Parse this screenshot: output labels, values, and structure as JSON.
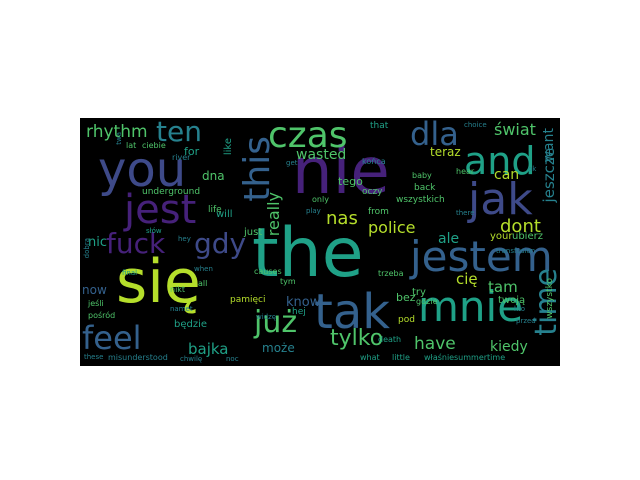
{
  "palette": {
    "background": "#000000",
    "purple": "#46217a",
    "indigo": "#3e4a89",
    "blue": "#34618d",
    "teal": "#26818e",
    "green": "#1fa187",
    "lime": "#4fc46a",
    "yellow": "#b5de2b"
  },
  "words": {
    "the": "the",
    "sie": "się",
    "nie": "nie",
    "you": "you",
    "mnie": "mnie",
    "tak": "tak",
    "jestem": "jestem",
    "jak": "jak",
    "jest": "jest",
    "czas": "czas",
    "and": "and",
    "dla": "dla",
    "this": "this",
    "time": "time",
    "feel": "feel",
    "fuck": "fuck",
    "gdy": "gdy",
    "ten": "ten",
    "juz": "już",
    "tylko": "tylko",
    "rhythm": "rhythm",
    "swiat": "świat",
    "have": "have",
    "dont": "dont",
    "nas": "nas",
    "police": "police",
    "jeszcze": "jeszcze",
    "want": "want",
    "really": "really",
    "wasted": "wasted",
    "bajka": "bajka",
    "moze": "może",
    "kiedy": "kiedy",
    "cie": "cię",
    "tam": "tam",
    "ale": "ale",
    "nic": "nic",
    "can": "can",
    "dna": "dna",
    "know": "know",
    "now": "now",
    "wszystko": "wszystko",
    "teraz": "teraz",
    "your": "your",
    "ubierz": "ubierz",
    "twoja": "twoją",
    "bedzie": "będzie",
    "for": "for",
    "like": "like",
    "just": "just",
    "will": "will",
    "tego": "tego",
    "that": "that",
    "from": "from",
    "bez": "bez",
    "try": "try",
    "underground": "underground",
    "wszystkich": "wszystkich",
    "konca": "końca",
    "oczy": "oczy",
    "back": "back",
    "baby": "baby",
    "hear": "hear",
    "life": "life",
    "pamieci": "pamięci",
    "hej": "hej",
    "gdzie": "gdzie",
    "misunderstood": "misunderstood",
    "summertime": "summertime",
    "death": "death",
    "pod": "pod",
    "what": "what",
    "little": "little",
    "jesli": "jeśli",
    "posrod": "pośród",
    "ciebie": "ciebie",
    "lat": "lat",
    "river": "river",
    "choice": "choice",
    "there": "there",
    "only": "only",
    "nikt": "nikt",
    "all": "all",
    "when": "when",
    "final": "final",
    "causes": "causes",
    "tym": "tym",
    "trzeba": "trzeba",
    "widze": "widzę",
    "chwile": "chwilę",
    "siow": "słów",
    "namet": "namet",
    "kto": "kto",
    "przed": "przed",
    "get": "get",
    "transfusion": "transfusion",
    "wlasnie": "właśnie",
    "dobra": "dobra",
    "these": "these",
    "hey": "hey",
    "ok": "ok",
    "twa": "twa",
    "noc": "noc",
    "play": "play"
  }
}
